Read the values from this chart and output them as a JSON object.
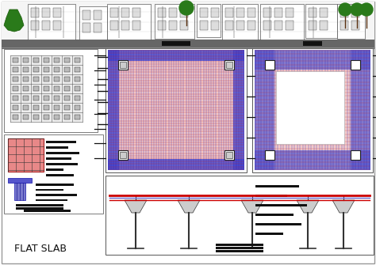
{
  "bg_color": "#ffffff",
  "title_text": "FLAT SLAB",
  "title_fontsize": 9,
  "title_color": "#111111",
  "top_bg": "#d8d8d8",
  "top_dark_bar": "#777777",
  "facade_white": "#ffffff",
  "facade_edge": "#222222",
  "tree_green": "#2a7a1a",
  "slab_pink": "#e8a0a0",
  "slab_red": "#cc2020",
  "slab_blue": "#3333cc",
  "slab_blue_light": "#7777dd",
  "slab_purple": "#9966cc",
  "grid_col": "#555555",
  "annot_col": "#111111",
  "red_line": "#cc0000",
  "blue_line": "#2222aa",
  "void_white": "#ffffff"
}
